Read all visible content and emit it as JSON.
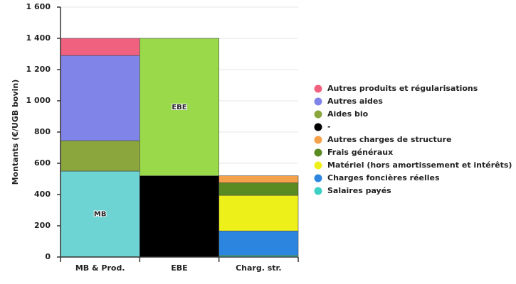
{
  "chart_data": {
    "type": "stacked_bar",
    "y_label": "Montants (€/UGB bovin)",
    "categories": [
      "MB & Prod.",
      "EBE",
      "Charg. str."
    ],
    "ylim": [
      0,
      1600
    ],
    "yticks": [
      0,
      200,
      400,
      600,
      800,
      {
        "value": 1000,
        "label": "1 000"
      },
      {
        "value": 1200,
        "label": "1 200"
      },
      {
        "value": 1400,
        "label": "1 400"
      },
      {
        "value": 1600,
        "label": "1 600"
      }
    ],
    "grid": true,
    "series": [
      {
        "name": "MB",
        "color": "#6dd3d3",
        "values": [
          550,
          null,
          null
        ],
        "in_legend": false,
        "segment_label": true
      },
      {
        "name": "Salaires payés",
        "color": "#3dd0c4",
        "values": [
          null,
          null,
          12
        ],
        "in_legend": true
      },
      {
        "name": "Charges foncières réelles",
        "color": "#2c86e0",
        "values": [
          null,
          null,
          155
        ],
        "in_legend": true
      },
      {
        "name": "Matériel (hors amortissement et intérêts)",
        "color": "#eef01a",
        "values": [
          null,
          null,
          228
        ],
        "in_legend": true
      },
      {
        "name": "Frais généraux",
        "color": "#5a8a22",
        "values": [
          null,
          null,
          80
        ],
        "in_legend": true
      },
      {
        "name": "Autres charges de structure",
        "color": "#f5a04a",
        "values": [
          null,
          null,
          45
        ],
        "in_legend": true
      },
      {
        "name": "-",
        "color": "#000000",
        "values": [
          null,
          520,
          null
        ],
        "in_legend": true
      },
      {
        "name": "EBE",
        "color": "#99d94a",
        "values": [
          null,
          880,
          null
        ],
        "in_legend": false,
        "segment_label": true
      },
      {
        "name": "Aides bio",
        "color": "#8aa63c",
        "values": [
          195,
          null,
          null
        ],
        "in_legend": true
      },
      {
        "name": "Autres aides",
        "color": "#8083e8",
        "values": [
          545,
          null,
          null
        ],
        "in_legend": true
      },
      {
        "name": "Autres produits et régularisations",
        "color": "#f0607f",
        "values": [
          110,
          null,
          null
        ],
        "in_legend": true
      }
    ]
  }
}
